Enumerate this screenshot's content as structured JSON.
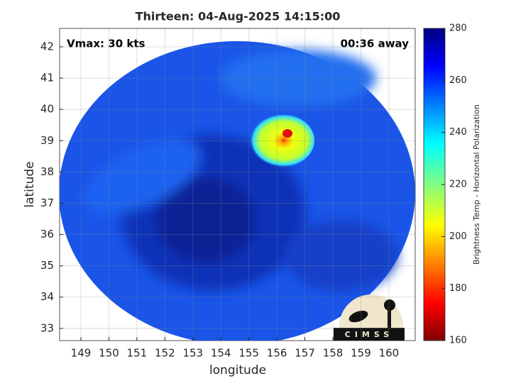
{
  "chart_data": {
    "type": "image",
    "title": "Thirteen: 04-Aug-2025 14:15:00",
    "annotations": [
      "Vmax: 30 kts",
      "00:36 away"
    ],
    "xlabel": "longitude",
    "ylabel": "latitude",
    "xlim": [
      148.24,
      160.94
    ],
    "ylim": [
      32.61,
      42.59
    ],
    "xticks": [
      149,
      150,
      151,
      152,
      153,
      154,
      155,
      156,
      157,
      158,
      159,
      160
    ],
    "yticks": [
      33,
      34,
      35,
      36,
      37,
      38,
      39,
      40,
      41,
      42
    ],
    "grid": true,
    "colorbar": {
      "label": "Brightness Temp - Horizontal Polarization",
      "lim": [
        160,
        280
      ],
      "ticks": [
        160,
        180,
        200,
        220,
        240,
        260,
        280
      ]
    },
    "logo": "CIMSS"
  }
}
